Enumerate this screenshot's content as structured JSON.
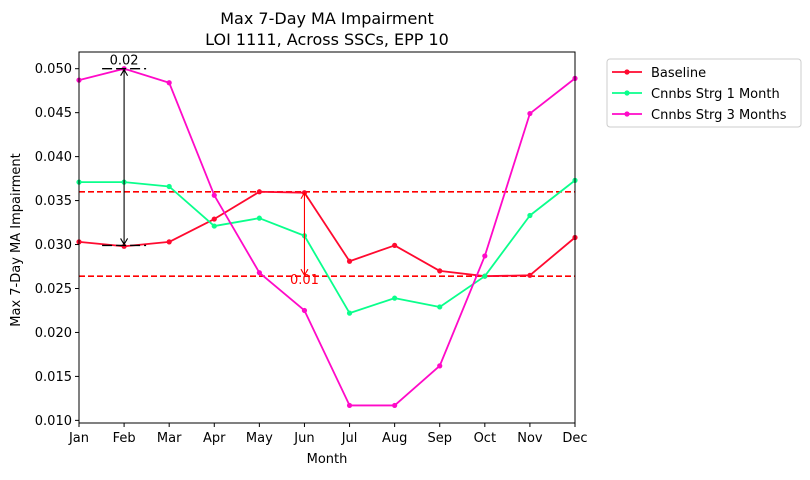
{
  "chart_data": {
    "type": "line",
    "title_line1": "Max 7-Day MA Impairment",
    "title_line2": "LOI 1111, Across SSCs, EPP 10",
    "xlabel": "Month",
    "ylabel": "Max 7-Day MA Impairment",
    "categories": [
      "Jan",
      "Feb",
      "Mar",
      "Apr",
      "May",
      "Jun",
      "Jul",
      "Aug",
      "Sep",
      "Oct",
      "Nov",
      "Dec"
    ],
    "ylim": [
      0.0097,
      0.0519
    ],
    "yticks": [
      0.01,
      0.015,
      0.02,
      0.025,
      0.03,
      0.035,
      0.04,
      0.045,
      0.05
    ],
    "ytick_labels": [
      "0.010",
      "0.015",
      "0.020",
      "0.025",
      "0.030",
      "0.035",
      "0.040",
      "0.045",
      "0.050"
    ],
    "grid": false,
    "legend_position": "outside-top-right",
    "series": [
      {
        "name": "Baseline",
        "color": "#ff0a2f",
        "values": [
          0.0303,
          0.0298,
          0.0303,
          0.0329,
          0.036,
          0.0359,
          0.0281,
          0.0299,
          0.027,
          0.0264,
          0.0265,
          0.0308
        ]
      },
      {
        "name": "Cnnbs Strg 1 Month",
        "color": "#0aff8c",
        "values": [
          0.0371,
          0.0371,
          0.0366,
          0.0321,
          0.033,
          0.031,
          0.0222,
          0.0239,
          0.0229,
          0.0264,
          0.0333,
          0.0373
        ]
      },
      {
        "name": "Cnnbs Strg 3 Months",
        "color": "#ff0ac8",
        "values": [
          0.0487,
          0.05,
          0.0484,
          0.0356,
          0.0268,
          0.0225,
          0.0117,
          0.0117,
          0.0162,
          0.0287,
          0.0449,
          0.0489
        ]
      }
    ],
    "hlines": [
      {
        "value": 0.036,
        "color": "#ff0000"
      },
      {
        "value": 0.0264,
        "color": "#ff0000"
      }
    ],
    "annotations": [
      {
        "label": "0.02",
        "x": "Feb",
        "y_top": 0.05,
        "y_bottom": 0.0299,
        "color": "#000000",
        "label_position": "top"
      },
      {
        "label": "0.01",
        "x": "Jun",
        "y_top": 0.036,
        "y_bottom": 0.0264,
        "color": "#ff0000",
        "label_position": "bottom"
      }
    ]
  }
}
